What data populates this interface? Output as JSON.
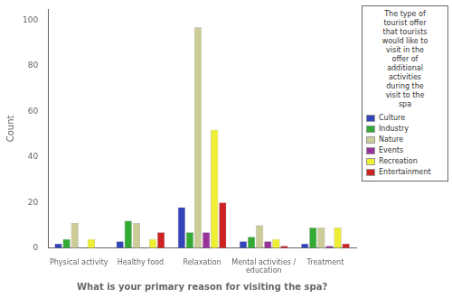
{
  "chart_data": {
    "type": "bar",
    "categories": [
      "Physical activity",
      "Healthy food",
      "Relaxation",
      "Mental activities /\neducation",
      "Treatment"
    ],
    "series": [
      {
        "name": "Culture",
        "color": "#3344bb",
        "values": [
          2,
          3,
          18,
          3,
          2
        ]
      },
      {
        "name": "Industry",
        "color": "#33aa33",
        "values": [
          4,
          12,
          7,
          5,
          9
        ]
      },
      {
        "name": "Nature",
        "color": "#cccc99",
        "values": [
          11,
          11,
          97,
          10,
          9
        ]
      },
      {
        "name": "Events",
        "color": "#993399",
        "values": [
          0,
          0,
          7,
          3,
          1
        ]
      },
      {
        "name": "Recreation",
        "color": "#eeee33",
        "values": [
          4,
          4,
          52,
          4,
          9
        ]
      },
      {
        "name": "Entertainment",
        "color": "#cc2222",
        "values": [
          0,
          7,
          20,
          1,
          2
        ]
      }
    ],
    "xlabel": "What is your primary reason for visiting the spa?",
    "ylabel": "Count",
    "legend_title": "The type of\ntourist offer\nthat tourists\nwould like to\nvisit in the\noffer of\nadditional\nactivities\nduring the\nvisit to the\nspa",
    "legend": "right",
    "ylim": [
      0,
      105
    ],
    "yticks": [
      0,
      20,
      40,
      60,
      80,
      100
    ],
    "grid": false
  }
}
